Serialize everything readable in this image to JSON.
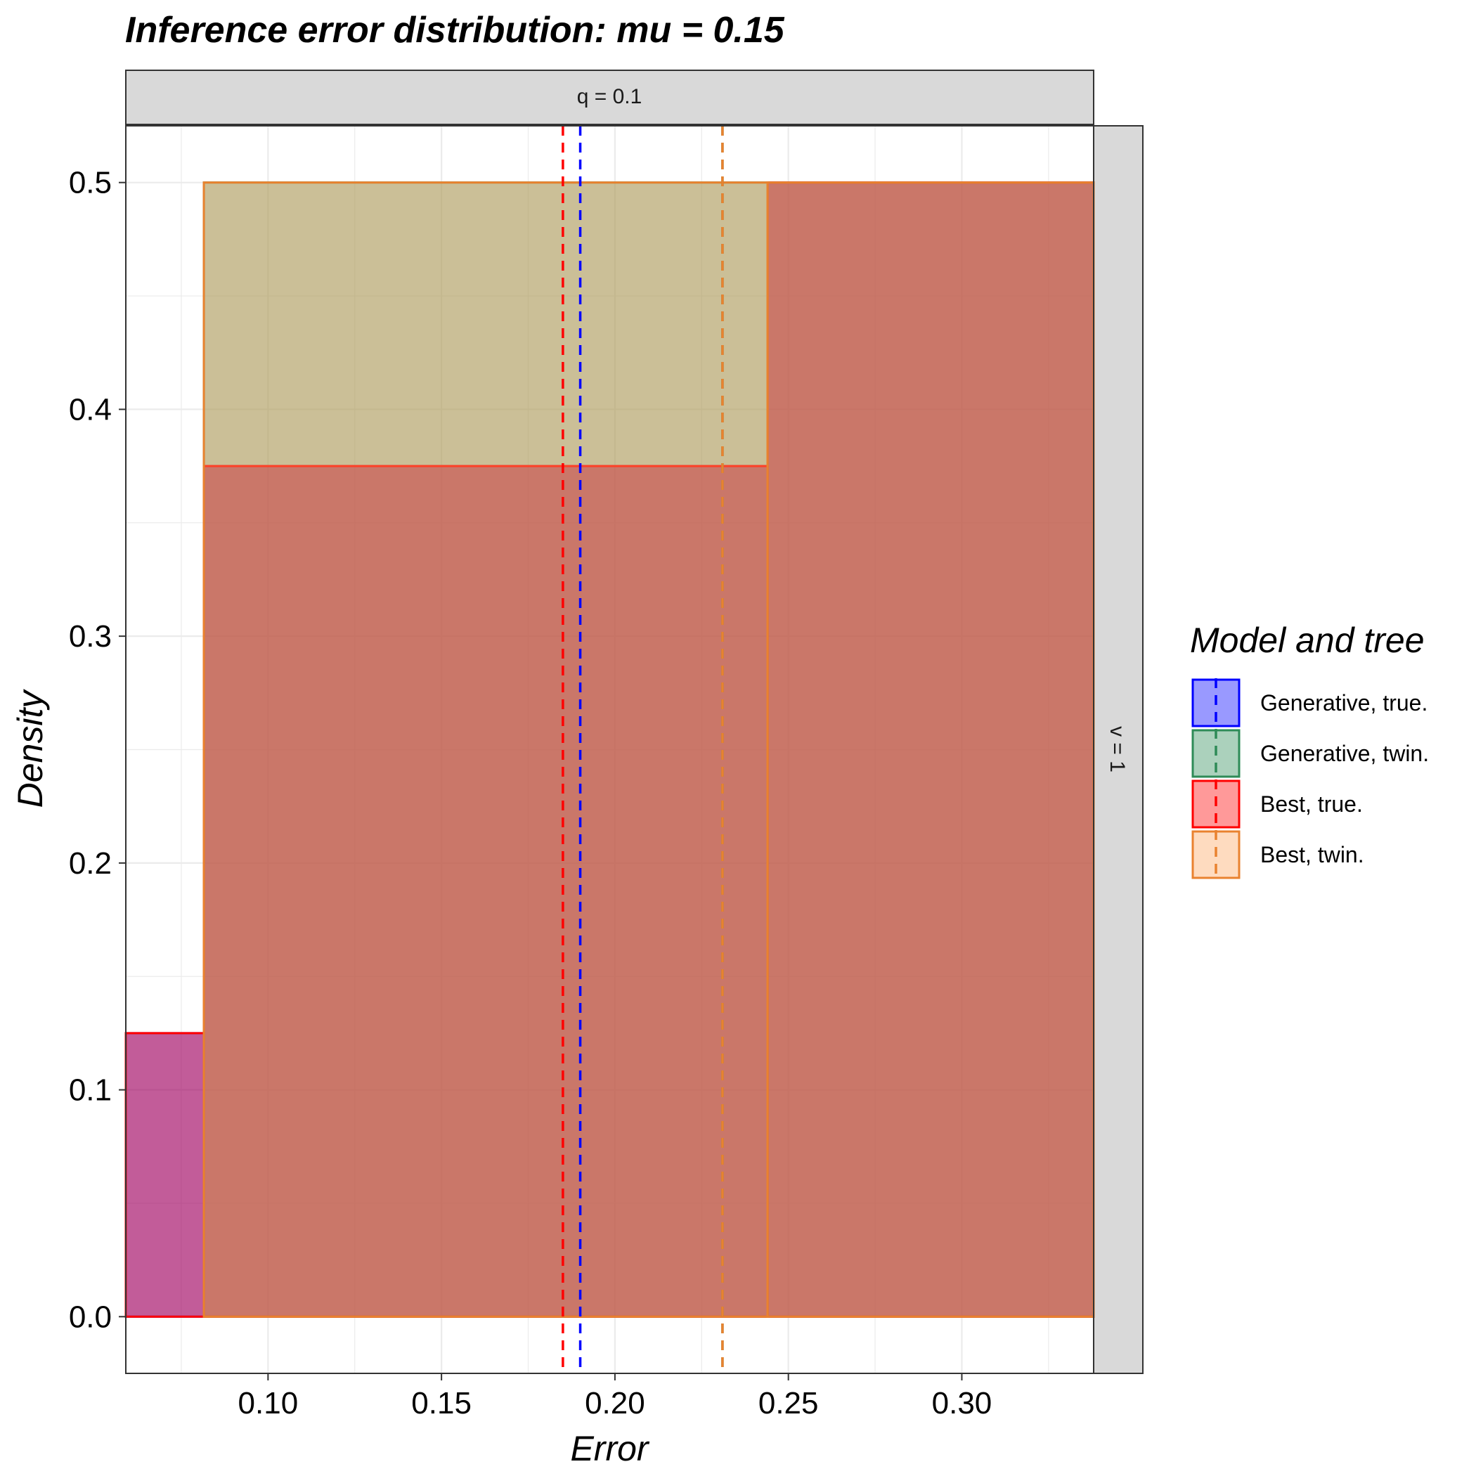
{
  "chart_data": {
    "type": "histogram",
    "title": "Inference error distribution: mu = 0.15",
    "xlabel": "Error",
    "ylabel": "Density",
    "facet_col_label": "q = 0.1",
    "facet_row_label": "v = 1",
    "xlim": [
      0.059,
      0.338
    ],
    "ylim": [
      -0.025,
      0.525
    ],
    "x_ticks": [
      0.1,
      0.15,
      0.2,
      0.25,
      0.3
    ],
    "x_tick_labels": [
      "0.10",
      "0.15",
      "0.20",
      "0.25",
      "0.30"
    ],
    "y_ticks": [
      0.0,
      0.1,
      0.2,
      0.3,
      0.4,
      0.5
    ],
    "y_tick_labels": [
      "0.0",
      "0.1",
      "0.2",
      "0.3",
      "0.4",
      "0.5"
    ],
    "grid": true,
    "legend": {
      "title": "Model and tree",
      "position": "right"
    },
    "series": [
      {
        "name": "Generative, true.",
        "fill": "#0000ff",
        "stroke": "#0000ff",
        "mean": 0.19,
        "bins": [
          {
            "x0": 0.059,
            "x1": 0.0815,
            "density": 0.125
          },
          {
            "x0": 0.0815,
            "x1": 0.244,
            "density": 0.375
          },
          {
            "x0": 0.244,
            "x1": 0.338,
            "density": 0.5
          }
        ]
      },
      {
        "name": "Generative, twin.",
        "fill": "#2e8b57",
        "stroke": "#2e8b57",
        "mean": 0.231,
        "bins": [
          {
            "x0": 0.0815,
            "x1": 0.244,
            "density": 0.5
          },
          {
            "x0": 0.244,
            "x1": 0.338,
            "density": 0.5
          }
        ]
      },
      {
        "name": "Best, true.",
        "fill": "#ff0000",
        "stroke": "#ff0000",
        "mean": 0.185,
        "bins": [
          {
            "x0": 0.059,
            "x1": 0.0815,
            "density": 0.125
          },
          {
            "x0": 0.0815,
            "x1": 0.244,
            "density": 0.375
          },
          {
            "x0": 0.244,
            "x1": 0.338,
            "density": 0.5
          }
        ]
      },
      {
        "name": "Best, twin.",
        "fill": "#fda660",
        "stroke": "#e9822f",
        "mean": 0.231,
        "bins": [
          {
            "x0": 0.0815,
            "x1": 0.244,
            "density": 0.5
          },
          {
            "x0": 0.244,
            "x1": 0.338,
            "density": 0.5
          }
        ]
      }
    ]
  }
}
